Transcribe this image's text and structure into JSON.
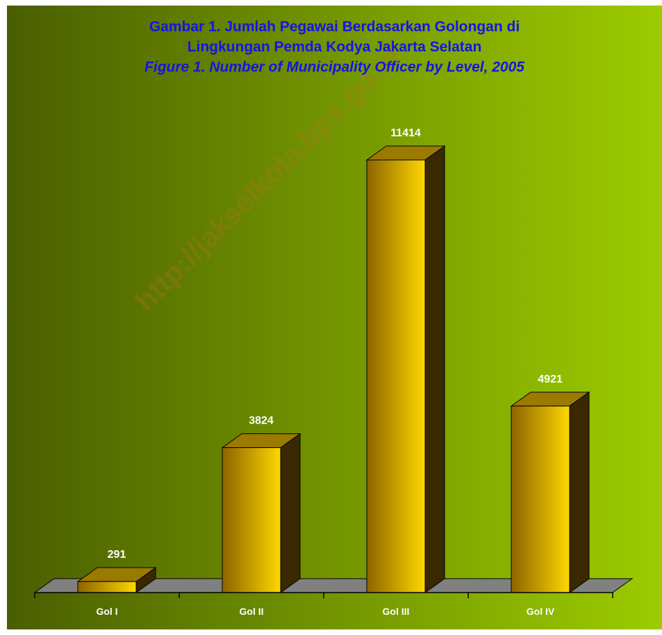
{
  "chart_data": {
    "type": "bar",
    "title_lines": [
      "Gambar 1. Jumlah Pegawai Berdasarkan Golongan di",
      "Lingkungan Pemda Kodya Jakarta Selatan"
    ],
    "subtitle": "Figure 1. Number of Municipality Officer by Level, 2005",
    "categories": [
      "Gol I",
      "Gol II",
      "Gol III",
      "Gol IV"
    ],
    "values": [
      291,
      3824,
      11414,
      4921
    ],
    "xlabel": "",
    "ylabel": "",
    "ylim": [
      0,
      11414
    ],
    "grid": false,
    "legend": "none",
    "three_d": true
  },
  "watermark": "http://jakselkota.bps.go.id",
  "colors": {
    "background_left": "#4a5e00",
    "background_right": "#9ccc00",
    "title": "#1414e6",
    "bar_front_dark": "#8c6400",
    "bar_front_light": "#ffd700",
    "bar_top": "#9a7a00",
    "bar_side": "#3a2800",
    "floor": "#808080",
    "label": "#ffffff"
  }
}
